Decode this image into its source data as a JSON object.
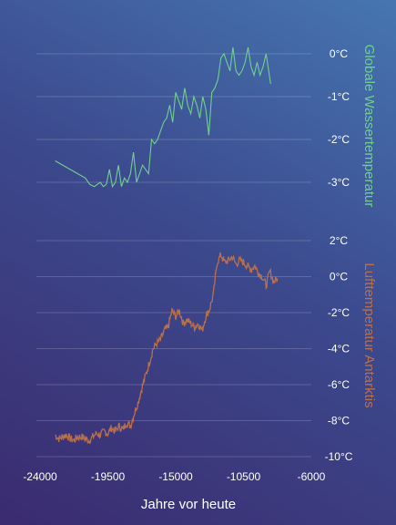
{
  "chart_data": [
    {
      "type": "line",
      "ylabel": "Globale Wassertemperatur",
      "ylim": [
        -3.3,
        0.2
      ],
      "yticks": [
        0,
        -1,
        -2,
        -3
      ],
      "ytick_labels": [
        "0°C",
        "-1°C",
        "-2°C",
        "-3°C"
      ],
      "grid": true,
      "color": "#6fd08e",
      "series": [
        {
          "x": [
            -23000,
            -22000,
            -21500,
            -21000,
            -20700,
            -20400,
            -20200,
            -20000,
            -19800,
            -19600,
            -19400,
            -19200,
            -19000,
            -18800,
            -18600,
            -18400,
            -18200,
            -18000,
            -17800,
            -17600,
            -17400,
            -17200,
            -17000,
            -16800,
            -16600,
            -16400,
            -16200,
            -16000,
            -15800,
            -15600,
            -15400,
            -15200,
            -15000,
            -14800,
            -14600,
            -14400,
            -14200,
            -14000,
            -13800,
            -13600,
            -13400,
            -13200,
            -13000,
            -12800,
            -12600,
            -12400,
            -12200,
            -12000,
            -11800,
            -11600,
            -11400,
            -11200,
            -11000,
            -10800,
            -10600,
            -10400,
            -10200,
            -10000,
            -9800,
            -9600,
            -9400,
            -9200,
            -9000,
            -8700
          ],
          "y": [
            -2.5,
            -2.7,
            -2.8,
            -2.9,
            -3.05,
            -3.1,
            -3.05,
            -3.0,
            -3.1,
            -3.05,
            -2.7,
            -3.1,
            -3.0,
            -2.6,
            -3.1,
            -2.9,
            -3.0,
            -2.8,
            -2.3,
            -3.0,
            -2.8,
            -2.6,
            -2.7,
            -2.8,
            -2.0,
            -2.1,
            -2.0,
            -1.8,
            -1.6,
            -1.5,
            -1.2,
            -1.6,
            -0.9,
            -1.1,
            -1.3,
            -0.8,
            -1.2,
            -1.4,
            -1.0,
            -1.2,
            -1.5,
            -1.0,
            -1.3,
            -1.9,
            -0.9,
            -0.8,
            -0.6,
            -0.1,
            0.0,
            -0.2,
            -0.4,
            0.15,
            -0.4,
            -0.5,
            -0.4,
            -0.2,
            0.15,
            -0.3,
            -0.5,
            -0.2,
            -0.5,
            -0.3,
            0.0,
            -0.7
          ]
        }
      ]
    },
    {
      "type": "line",
      "xlabel": "Jahre vor heute",
      "ylabel": "Lufttemperatur Antarktis",
      "ylim": [
        -10,
        2
      ],
      "yticks": [
        2,
        0,
        -2,
        -4,
        -6,
        -8,
        -10
      ],
      "ytick_labels": [
        "2°C",
        "0°C",
        "-2°C",
        "-4°C",
        "-6°C",
        "-8°C",
        "-10°C"
      ],
      "xlim": [
        -24000,
        -6000
      ],
      "xticks": [
        -24000,
        -19500,
        -15000,
        -10500,
        -6000
      ],
      "xtick_labels": [
        "-24000",
        "-19500",
        "-15000",
        "-10500",
        "-6000"
      ],
      "grid": true,
      "color": "#b8704c",
      "series": [
        {
          "x": [
            -23000,
            -22750,
            -22500,
            -22250,
            -22000,
            -21750,
            -21500,
            -21250,
            -21000,
            -20750,
            -20500,
            -20250,
            -20000,
            -19750,
            -19500,
            -19250,
            -19000,
            -18750,
            -18500,
            -18250,
            -18000,
            -17750,
            -17500,
            -17250,
            -17000,
            -16750,
            -16500,
            -16250,
            -16000,
            -15750,
            -15500,
            -15250,
            -15000,
            -14750,
            -14500,
            -14250,
            -14000,
            -13750,
            -13500,
            -13250,
            -13000,
            -12750,
            -12500,
            -12250,
            -12000,
            -11750,
            -11500,
            -11250,
            -11000,
            -10750,
            -10500,
            -10250,
            -10000,
            -9750,
            -9500,
            -9250,
            -9000,
            -8750,
            -8500,
            -8250
          ],
          "y": [
            -8.8,
            -9.0,
            -8.9,
            -8.8,
            -9.0,
            -9.1,
            -8.9,
            -8.9,
            -9.0,
            -9.1,
            -8.9,
            -8.7,
            -8.8,
            -8.6,
            -8.7,
            -8.4,
            -8.6,
            -8.3,
            -8.5,
            -8.1,
            -8.3,
            -7.6,
            -7.0,
            -6.2,
            -5.5,
            -4.8,
            -4.0,
            -3.7,
            -3.5,
            -3.0,
            -2.8,
            -1.9,
            -2.2,
            -1.9,
            -2.6,
            -2.4,
            -2.6,
            -2.8,
            -2.6,
            -3.0,
            -2.2,
            -1.8,
            -1.0,
            0.8,
            1.2,
            0.8,
            0.9,
            1.1,
            0.7,
            0.9,
            0.8,
            0.6,
            0.4,
            0.6,
            0.2,
            0.0,
            -0.5,
            0.3,
            -0.3,
            -0.1
          ]
        }
      ]
    }
  ]
}
